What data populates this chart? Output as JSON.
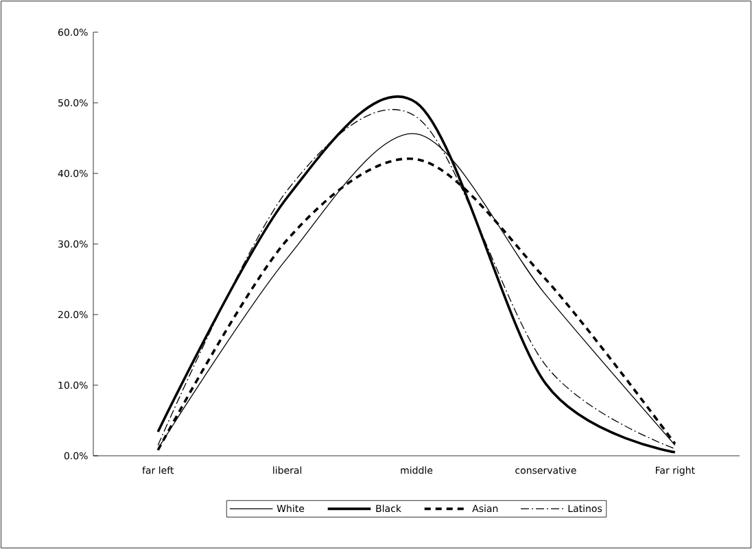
{
  "chart_data": {
    "type": "line",
    "categories": [
      "far left",
      "liberal",
      "middle",
      "conservative",
      "Far right"
    ],
    "series": [
      {
        "name": "White",
        "color": "#000000",
        "line_style": "solid",
        "values": [
          1.0,
          28.0,
          45.6,
          22.8,
          1.5
        ]
      },
      {
        "name": "Black",
        "color": "#000000",
        "line_style": "solid",
        "values": [
          3.4,
          36.6,
          50.0,
          10.2,
          0.5
        ]
      },
      {
        "name": "Asian",
        "color": "#000000",
        "line_style": "dashed",
        "values": [
          0.8,
          30.6,
          42.0,
          25.0,
          1.7
        ]
      },
      {
        "name": "Latinos",
        "color": "#000000",
        "line_style": "dashdot",
        "values": [
          1.5,
          37.6,
          48.0,
          12.8,
          1.0
        ]
      }
    ],
    "ylim": [
      0,
      60
    ],
    "yticks": [
      {
        "value": 0,
        "label": "0.0%"
      },
      {
        "value": 10,
        "label": "10.0%"
      },
      {
        "value": 20,
        "label": "20.0%"
      },
      {
        "value": 30,
        "label": "30.0%"
      },
      {
        "value": 40,
        "label": "40.0%"
      },
      {
        "value": 50,
        "label": "50.0%"
      },
      {
        "value": 60,
        "label": "60.0%"
      }
    ],
    "legend": "bottom"
  }
}
